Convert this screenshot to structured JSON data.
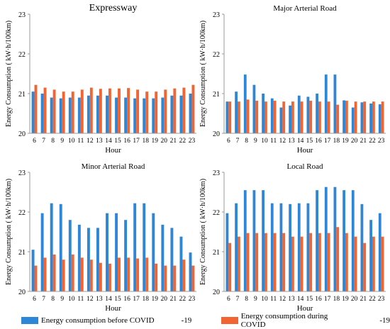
{
  "chart_data": [
    {
      "type": "bar",
      "title": "Expressway",
      "xlabel": "Hour",
      "ylabel": "Energy Consumption ( kW·h/100km)",
      "categories": [
        "6",
        "7",
        "8",
        "9",
        "10",
        "11",
        "12",
        "13",
        "14",
        "15",
        "16",
        "17",
        "18",
        "19",
        "20",
        "21",
        "22",
        "23"
      ],
      "ylim": [
        20,
        23
      ],
      "yticks": [
        "20",
        "21",
        "22",
        "23"
      ],
      "series": [
        {
          "values": [
            21.05,
            21.0,
            20.9,
            20.88,
            20.9,
            20.9,
            20.95,
            20.95,
            20.95,
            20.9,
            20.9,
            20.88,
            20.88,
            20.88,
            20.9,
            20.95,
            20.95,
            21.0
          ]
        },
        {
          "values": [
            21.22,
            21.15,
            21.1,
            21.05,
            21.05,
            21.1,
            21.15,
            21.12,
            21.13,
            21.13,
            21.14,
            21.1,
            21.05,
            21.05,
            21.1,
            21.13,
            21.15,
            21.22
          ]
        }
      ]
    },
    {
      "type": "bar",
      "title": "Major Arterial Road",
      "xlabel": "Hour",
      "ylabel": "Energy Consumption ( kW·h/100km)",
      "categories": [
        "6",
        "7",
        "8",
        "9",
        "10",
        "11",
        "12",
        "13",
        "14",
        "15",
        "16",
        "17",
        "18",
        "19",
        "20",
        "21",
        "22",
        "23"
      ],
      "ylim": [
        20,
        23
      ],
      "yticks": [
        "20",
        "21",
        "22",
        "23"
      ],
      "series": [
        {
          "values": [
            20.8,
            21.05,
            21.48,
            21.22,
            21.0,
            20.88,
            20.65,
            20.7,
            20.95,
            20.92,
            21.0,
            21.48,
            21.48,
            20.83,
            20.65,
            20.78,
            20.75,
            20.73
          ]
        },
        {
          "values": [
            20.8,
            20.8,
            20.85,
            20.82,
            20.8,
            20.82,
            20.8,
            20.8,
            20.8,
            20.82,
            20.8,
            20.8,
            20.72,
            20.82,
            20.8,
            20.8,
            20.8,
            20.8
          ]
        }
      ]
    },
    {
      "type": "bar",
      "title": "Minor Arterial Road",
      "xlabel": "Hour",
      "ylabel": "Energy Consumption ( kW·h/100km)",
      "categories": [
        "6",
        "7",
        "8",
        "9",
        "10",
        "11",
        "12",
        "13",
        "14",
        "15",
        "16",
        "17",
        "18",
        "19",
        "20",
        "21",
        "22",
        "23"
      ],
      "ylim": [
        20,
        23
      ],
      "yticks": [
        "20",
        "21",
        "22",
        "23"
      ],
      "series": [
        {
          "values": [
            21.05,
            21.97,
            22.22,
            22.2,
            21.8,
            21.68,
            21.6,
            21.6,
            21.97,
            21.97,
            21.8,
            22.22,
            22.22,
            21.97,
            21.68,
            21.6,
            21.38,
            20.98
          ]
        },
        {
          "values": [
            20.65,
            20.85,
            20.93,
            20.8,
            20.93,
            20.85,
            20.8,
            20.72,
            20.7,
            20.85,
            20.85,
            20.83,
            20.85,
            20.7,
            20.65,
            20.65,
            20.8,
            20.65
          ]
        }
      ]
    },
    {
      "type": "bar",
      "title": "Local Road",
      "xlabel": "Hour",
      "ylabel": "Energy Consumption ( kW·h/100km)",
      "categories": [
        "6",
        "7",
        "8",
        "9",
        "10",
        "11",
        "12",
        "13",
        "14",
        "15",
        "16",
        "17",
        "18",
        "19",
        "20",
        "21",
        "22",
        "23"
      ],
      "ylim": [
        20,
        23
      ],
      "yticks": [
        "20",
        "21",
        "22",
        "23"
      ],
      "series": [
        {
          "values": [
            21.97,
            22.22,
            22.55,
            22.55,
            22.55,
            22.22,
            22.22,
            22.2,
            22.22,
            22.22,
            22.55,
            22.63,
            22.63,
            22.55,
            22.55,
            22.2,
            21.8,
            21.97
          ]
        },
        {
          "values": [
            21.22,
            21.38,
            21.47,
            21.47,
            21.47,
            21.47,
            21.47,
            21.38,
            21.38,
            21.47,
            21.47,
            21.47,
            21.62,
            21.47,
            21.38,
            21.22,
            21.38,
            21.38
          ]
        }
      ]
    }
  ],
  "legend": {
    "before_label": "Energy consumption before COVID",
    "before_suffix": "-19",
    "during_label": "Energy consumption during COVID",
    "during_suffix": "-19"
  },
  "colors": {
    "before": "#2e86d6",
    "during": "#f26532",
    "axis": "#999999",
    "text": "#000000"
  }
}
